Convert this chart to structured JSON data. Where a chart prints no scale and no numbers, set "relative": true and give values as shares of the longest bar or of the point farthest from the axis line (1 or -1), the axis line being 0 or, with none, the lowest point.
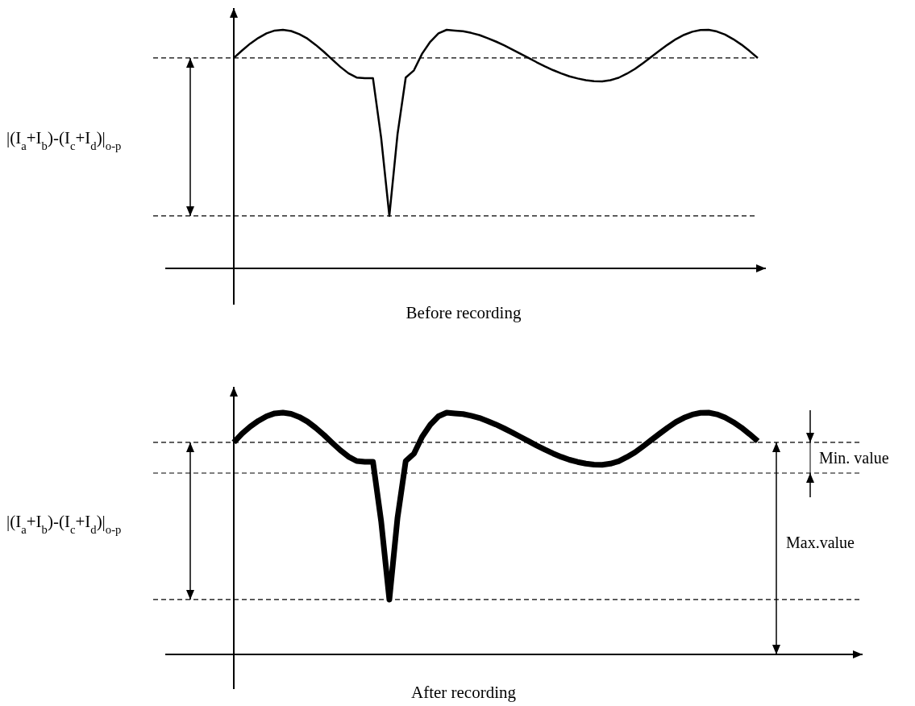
{
  "chart_data": [
    {
      "type": "line",
      "relative": true,
      "xlabel": "Before recording",
      "ylabel": "|(I$_{a}$+I$_{b}$)-(I$_{c}$+I$_{d}$)|$_{o-p}$",
      "categories": [
        null,
        null,
        null,
        null,
        null,
        null,
        null,
        null,
        null,
        null,
        null,
        null,
        null,
        null,
        null,
        null,
        null,
        null,
        null,
        null,
        null,
        null,
        null,
        null,
        null,
        null,
        null,
        null,
        null,
        null,
        null,
        null,
        null,
        null,
        null,
        null,
        null,
        null,
        null,
        null,
        null,
        null,
        null,
        null,
        null,
        null,
        null,
        null,
        null,
        null,
        null,
        null,
        null,
        null,
        null,
        null,
        null,
        null,
        null,
        null,
        null,
        null,
        null,
        null,
        null
      ],
      "series": [
        {
          "color": "#000000",
          "values": [
            0.882,
            0.913,
            0.942,
            0.966,
            0.985,
            0.997,
            1.0,
            0.995,
            0.982,
            0.963,
            0.937,
            0.908,
            0.876,
            0.845,
            0.818,
            0.8,
            0.797,
            0.797,
            0.547,
            0.22,
            0.563,
            0.8,
            0.83,
            0.9,
            0.95,
            0.985,
            1.0,
            0.997,
            0.994,
            0.987,
            0.978,
            0.965,
            0.951,
            0.935,
            0.918,
            0.9,
            0.882,
            0.864,
            0.847,
            0.831,
            0.817,
            0.805,
            0.796,
            0.789,
            0.785,
            0.784,
            0.789,
            0.799,
            0.816,
            0.836,
            0.861,
            0.887,
            0.913,
            0.938,
            0.961,
            0.979,
            0.992,
            0.999,
            1.0,
            0.993,
            0.98,
            0.961,
            0.938,
            0.911,
            0.882
          ]
        }
      ],
      "ref_lines": [
        {
          "axis": "y",
          "value": 0.882,
          "line_style": "dashed"
        },
        {
          "axis": "y",
          "value": 0.22,
          "line_style": "dashed"
        }
      ]
    },
    {
      "type": "line",
      "relative": true,
      "xlabel": "After recording",
      "ylabel": "|(I$_{a}$+I$_{b}$)-(I$_{c}$+I$_{d}$)|$_{o-p}$",
      "categories": [
        null,
        null,
        null,
        null,
        null,
        null,
        null,
        null,
        null,
        null,
        null,
        null,
        null,
        null,
        null,
        null,
        null,
        null,
        null,
        null,
        null,
        null,
        null,
        null,
        null,
        null,
        null,
        null,
        null,
        null,
        null,
        null,
        null,
        null,
        null,
        null,
        null,
        null,
        null,
        null,
        null,
        null,
        null,
        null,
        null,
        null,
        null,
        null,
        null,
        null,
        null,
        null,
        null,
        null,
        null,
        null,
        null,
        null,
        null,
        null,
        null,
        null,
        null,
        null,
        null
      ],
      "series": [
        {
          "color": "#000000",
          "values": [
            0.877,
            0.913,
            0.942,
            0.966,
            0.985,
            0.997,
            1.0,
            0.995,
            0.982,
            0.963,
            0.937,
            0.908,
            0.876,
            0.845,
            0.818,
            0.8,
            0.797,
            0.797,
            0.55,
            0.227,
            0.566,
            0.8,
            0.83,
            0.9,
            0.95,
            0.985,
            1.0,
            0.997,
            0.994,
            0.987,
            0.978,
            0.965,
            0.951,
            0.935,
            0.918,
            0.9,
            0.882,
            0.864,
            0.847,
            0.831,
            0.817,
            0.805,
            0.796,
            0.789,
            0.785,
            0.784,
            0.789,
            0.799,
            0.816,
            0.836,
            0.861,
            0.887,
            0.913,
            0.938,
            0.961,
            0.979,
            0.992,
            0.999,
            1.0,
            0.993,
            0.98,
            0.961,
            0.938,
            0.911,
            0.882
          ]
        }
      ],
      "ref_lines": [
        {
          "axis": "y",
          "value": 0.877,
          "line_style": "dashed"
        },
        {
          "axis": "y",
          "value": 0.75,
          "line_style": "dashed"
        },
        {
          "axis": "y",
          "value": 0.227,
          "line_style": "dashed"
        }
      ],
      "annotations": [
        "Min. value",
        "Max.value"
      ]
    }
  ]
}
